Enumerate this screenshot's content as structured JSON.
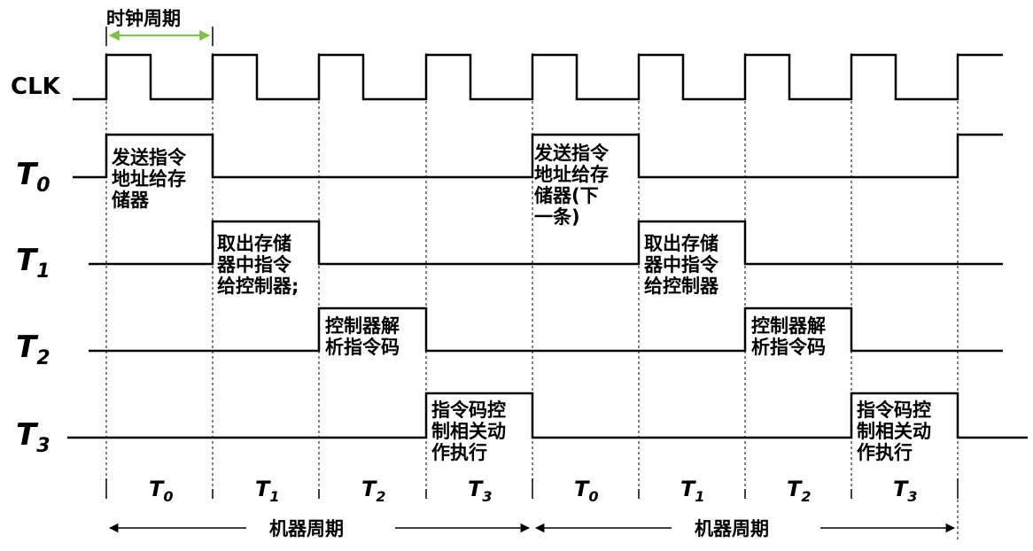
{
  "clock_period_label": "时钟周期",
  "signals": {
    "clk": "CLK",
    "t0": "T",
    "t1": "T",
    "t2": "T",
    "t3": "T"
  },
  "subscripts": [
    "0",
    "1",
    "2",
    "3"
  ],
  "pulse_text": {
    "t0_first": [
      "发送指令",
      "地址给存",
      "储器"
    ],
    "t1_first": [
      "取出存储",
      "器中指令",
      "给控制器;"
    ],
    "t2_first": [
      "控制器解",
      "析指令码"
    ],
    "t3_first": [
      "指令码控",
      "制相关动",
      "作执行"
    ],
    "t0_second": [
      "发送指令",
      "地址给存",
      "储器(下",
      "一条)"
    ],
    "t1_second": [
      "取出存储",
      "器中指令",
      "给控制器"
    ],
    "t2_second": [
      "控制器解",
      "析指令码"
    ],
    "t3_second": [
      "指令码控",
      "制相关动",
      "作执行"
    ]
  },
  "phase_labels": [
    {
      "name": "T",
      "sub": "0"
    },
    {
      "name": "T",
      "sub": "1"
    },
    {
      "name": "T",
      "sub": "2"
    },
    {
      "name": "T",
      "sub": "3"
    },
    {
      "name": "T",
      "sub": "0"
    },
    {
      "name": "T",
      "sub": "1"
    },
    {
      "name": "T",
      "sub": "2"
    },
    {
      "name": "T",
      "sub": "3"
    }
  ],
  "machine_cycle_label": "机器周期",
  "colors": {
    "clock_period_arrow": "#7dc242",
    "line": "#000000"
  }
}
